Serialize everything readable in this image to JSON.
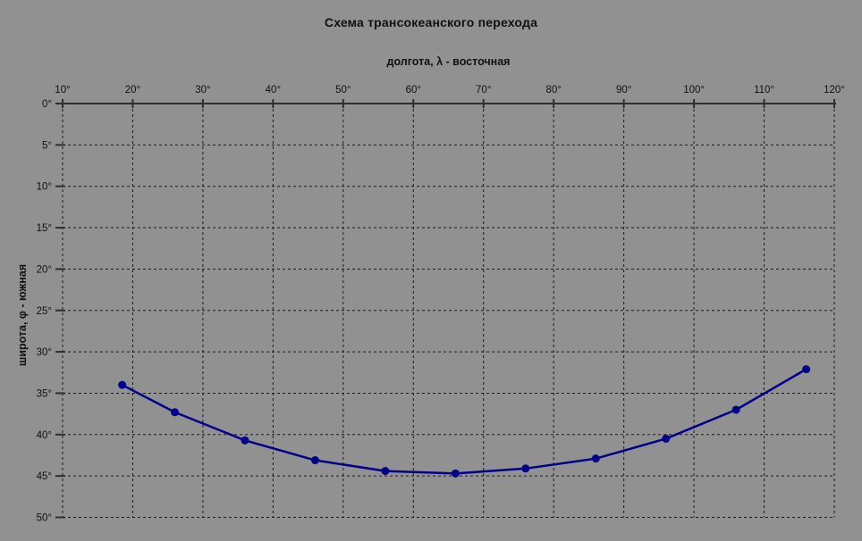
{
  "page": {
    "background_color": "#919191"
  },
  "chart_data": {
    "type": "line",
    "title": "Схема трансокеанского перехода",
    "xlabel": "долгота, λ - восточная",
    "ylabel": "широта, φ - южная",
    "x_tick_values": [
      10,
      20,
      30,
      40,
      50,
      60,
      70,
      80,
      90,
      100,
      110,
      120
    ],
    "x_tick_labels": [
      "10°",
      "20°",
      "30°",
      "40°",
      "50°",
      "60°",
      "70°",
      "80°",
      "90°",
      "100°",
      "110°",
      "120°"
    ],
    "y_tick_values": [
      0,
      5,
      10,
      15,
      20,
      25,
      30,
      35,
      40,
      45,
      50
    ],
    "y_tick_labels": [
      "0°",
      "5°",
      "10°",
      "15°",
      "20°",
      "25°",
      "30°",
      "35°",
      "40°",
      "45°",
      "50°"
    ],
    "xlim": [
      10,
      120
    ],
    "ylim": [
      0,
      50
    ],
    "y_axis_inverted": true,
    "grid_style": "dashed",
    "grid_color": "#1c1c1c",
    "axis_color": "#2e2e2e",
    "legend": "none",
    "series": [
      {
        "color": "#00008b",
        "marker": "circle",
        "marker_radius": 4.5,
        "line_width": 2.5,
        "x": [
          18.5,
          26,
          36,
          46,
          56,
          66,
          76,
          86,
          96,
          106,
          116
        ],
        "y": [
          34.0,
          37.3,
          40.7,
          43.1,
          44.4,
          44.7,
          44.1,
          42.9,
          40.5,
          37.0,
          32.1
        ]
      }
    ]
  }
}
